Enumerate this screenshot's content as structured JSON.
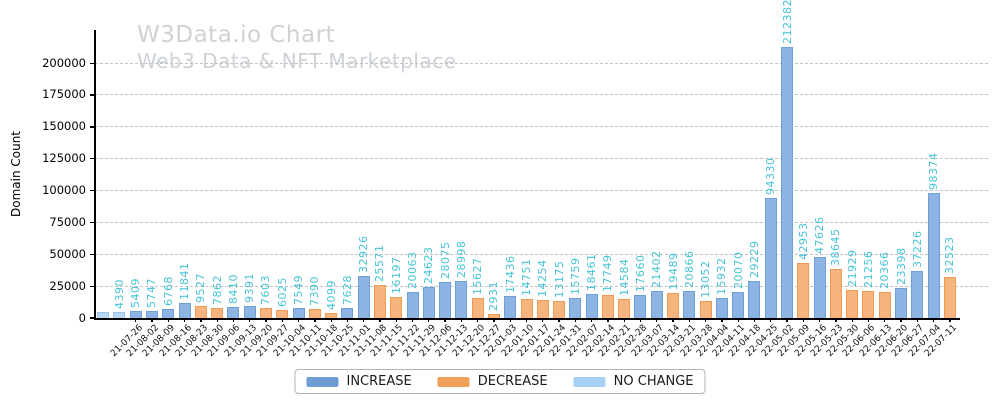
{
  "watermark": {
    "title": "W3Data.io Chart",
    "subtitle": "Web3 Data & NFT Marketplace"
  },
  "chart_data": {
    "type": "bar",
    "title": "W3Data.io Chart",
    "subtitle": "Web3 Data & NFT Marketplace",
    "xlabel": "",
    "ylabel": "Domain Count",
    "ylim": [
      0,
      226000
    ],
    "yticks": [
      0,
      25000,
      50000,
      75000,
      100000,
      125000,
      150000,
      175000,
      200000
    ],
    "grid": "horizontal-dashed",
    "legend_position": "bottom-center",
    "bar_label_color": "#46c4d7",
    "series": [
      {
        "key": "increase",
        "label": "INCREASE",
        "fill": "#8db4e2",
        "edge": "#6f9fd8",
        "legend_color": "#6d9dd1"
      },
      {
        "key": "decrease",
        "label": "DECREASE",
        "fill": "#f6b47f",
        "edge": "#f09b55",
        "legend_color": "#f0a057"
      },
      {
        "key": "nochange",
        "label": "NO CHANGE",
        "fill": "#b9d9f2",
        "edge": "#9cc5ec",
        "legend_color": "#a6d0f5"
      }
    ],
    "points": [
      {
        "date": "",
        "label": "",
        "value": 4500,
        "estimated": true,
        "series": "nochange"
      },
      {
        "date": "",
        "label": "4390",
        "value": 4390,
        "series": "nochange"
      },
      {
        "date": "21-07-26",
        "label": "5409",
        "value": 5409,
        "series": "increase"
      },
      {
        "date": "21-08-02",
        "label": "5747",
        "value": 5747,
        "series": "increase"
      },
      {
        "date": "21-08-09",
        "label": "6768",
        "value": 6768,
        "series": "increase"
      },
      {
        "date": "21-08-16",
        "label": "11841",
        "value": 11841,
        "series": "increase"
      },
      {
        "date": "21-08-23",
        "label": "9527",
        "value": 9527,
        "series": "decrease"
      },
      {
        "date": "21-08-30",
        "label": "7862",
        "value": 7862,
        "series": "decrease"
      },
      {
        "date": "21-09-06",
        "label": "8410",
        "value": 8410,
        "series": "increase"
      },
      {
        "date": "21-09-13",
        "label": "9391",
        "value": 9391,
        "series": "increase"
      },
      {
        "date": "21-09-20",
        "label": "7603",
        "value": 7603,
        "series": "decrease"
      },
      {
        "date": "21-09-27",
        "label": "6025",
        "value": 6025,
        "series": "decrease"
      },
      {
        "date": "21-10-04",
        "label": "7549",
        "value": 7549,
        "series": "increase"
      },
      {
        "date": "21-10-11",
        "label": "7390",
        "value": 7390,
        "series": "decrease"
      },
      {
        "date": "21-10-18",
        "label": "4099",
        "value": 4099,
        "series": "decrease"
      },
      {
        "date": "21-10-25",
        "label": "7628",
        "value": 7628,
        "series": "increase"
      },
      {
        "date": "21-11-01",
        "label": "32926",
        "value": 32926,
        "series": "increase"
      },
      {
        "date": "21-11-08",
        "label": "25571",
        "value": 25571,
        "series": "decrease"
      },
      {
        "date": "21-11-15",
        "label": "16197",
        "value": 16197,
        "series": "decrease"
      },
      {
        "date": "21-11-22",
        "label": "20063",
        "value": 20063,
        "series": "increase"
      },
      {
        "date": "21-11-29",
        "label": "24623",
        "value": 24623,
        "series": "increase"
      },
      {
        "date": "21-12-06",
        "label": "28075",
        "value": 28075,
        "series": "increase"
      },
      {
        "date": "21-12-13",
        "label": "28998",
        "value": 28998,
        "series": "increase"
      },
      {
        "date": "21-12-20",
        "label": "15627",
        "value": 15627,
        "series": "decrease"
      },
      {
        "date": "21-12-27",
        "label": "2931",
        "value": 2931,
        "series": "decrease"
      },
      {
        "date": "22-01-03",
        "label": "17436",
        "value": 17436,
        "series": "increase"
      },
      {
        "date": "22-01-10",
        "label": "14751",
        "value": 14751,
        "series": "decrease"
      },
      {
        "date": "22-01-17",
        "label": "14254",
        "value": 14254,
        "series": "decrease"
      },
      {
        "date": "22-01-24",
        "label": "13175",
        "value": 13175,
        "series": "decrease"
      },
      {
        "date": "22-01-31",
        "label": "15759",
        "value": 15759,
        "series": "increase"
      },
      {
        "date": "22-02-07",
        "label": "18461",
        "value": 18461,
        "series": "increase"
      },
      {
        "date": "22-02-14",
        "label": "17749",
        "value": 17749,
        "series": "decrease"
      },
      {
        "date": "22-02-21",
        "label": "14584",
        "value": 14584,
        "series": "decrease"
      },
      {
        "date": "22-02-28",
        "label": "17660",
        "value": 17660,
        "series": "increase"
      },
      {
        "date": "22-03-07",
        "label": "21402",
        "value": 21402,
        "series": "increase"
      },
      {
        "date": "22-03-14",
        "label": "19489",
        "value": 19489,
        "series": "decrease"
      },
      {
        "date": "22-03-21",
        "label": "20866",
        "value": 20866,
        "series": "increase"
      },
      {
        "date": "22-03-28",
        "label": "13052",
        "value": 13052,
        "series": "decrease"
      },
      {
        "date": "22-04-04",
        "label": "15932",
        "value": 15932,
        "series": "increase"
      },
      {
        "date": "22-04-11",
        "label": "20070",
        "value": 20070,
        "series": "increase"
      },
      {
        "date": "22-04-18",
        "label": "29229",
        "value": 29229,
        "series": "increase"
      },
      {
        "date": "22-04-25",
        "label": "94330",
        "value": 94330,
        "series": "increase"
      },
      {
        "date": "22-05-02",
        "label": "212382",
        "value": 212382,
        "series": "increase"
      },
      {
        "date": "22-05-09",
        "label": "42953",
        "value": 42953,
        "series": "decrease"
      },
      {
        "date": "22-05-16",
        "label": "47626",
        "value": 47626,
        "series": "increase"
      },
      {
        "date": "22-05-23",
        "label": "38645",
        "value": 38645,
        "series": "decrease"
      },
      {
        "date": "22-05-30",
        "label": "21929",
        "value": 21929,
        "series": "decrease"
      },
      {
        "date": "22-06-06",
        "label": "21256",
        "value": 21256,
        "series": "decrease"
      },
      {
        "date": "22-06-13",
        "label": "20366",
        "value": 20366,
        "series": "decrease"
      },
      {
        "date": "22-06-20",
        "label": "23398",
        "value": 23398,
        "series": "increase"
      },
      {
        "date": "22-06-27",
        "label": "37226",
        "value": 37226,
        "series": "increase"
      },
      {
        "date": "22-07-04",
        "label": "98374",
        "value": 98374,
        "series": "increase"
      },
      {
        "date": "22-07-11",
        "label": "32523",
        "value": 32523,
        "series": "decrease"
      }
    ]
  }
}
